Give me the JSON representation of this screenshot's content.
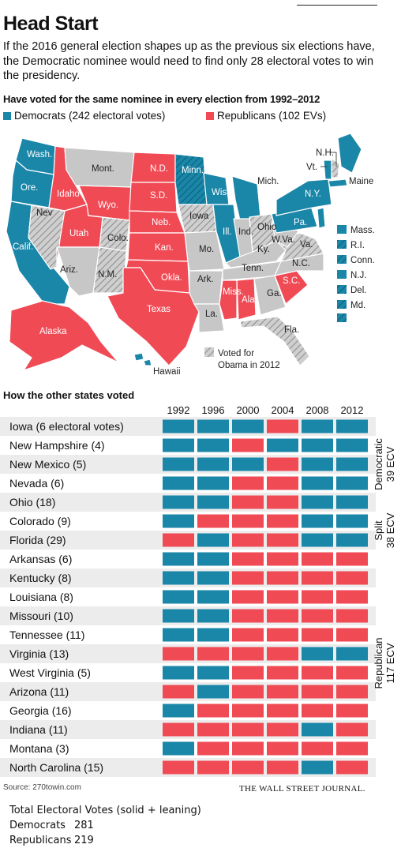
{
  "title": "Head Start",
  "intro": "If the 2016 general election shapes up as the previous six elections have, the Democratic nominee would need to find only 28 electoral votes to win the presidency.",
  "subtitle": "Have voted for the same nominee in every election from 1992–2012",
  "legend": {
    "democrats": "Democrats (242 electoral votes)",
    "republicans": "Republicans (102 EVs)",
    "hatched": "Voted for Obama in 2012"
  },
  "colors": {
    "dem": "#1a86a8",
    "rep": "#f04a55",
    "gray": "#c7c7c7",
    "rowbg": "#ececec"
  },
  "map_labels": {
    "wash": "Wash.",
    "ore": "Ore.",
    "calif": "Calif.",
    "nev": "Nev",
    "idaho": "Idaho",
    "utah": "Utah",
    "ariz": "Ariz.",
    "mont": "Mont.",
    "wyo": "Wyo.",
    "colo": "Colo.",
    "nm": "N.M.",
    "nd": "N.D.",
    "sd": "S.D.",
    "neb": "Neb.",
    "kan": "Kan.",
    "okla": "Okla.",
    "texas": "Texas",
    "minn": "Minn.",
    "iowa": "Iowa",
    "mo": "Mo.",
    "ark": "Ark.",
    "la": "La.",
    "wis": "Wis.",
    "ill": "Ill.",
    "mich": "Mich.",
    "ind": "Ind.",
    "ohio": "Ohio",
    "ky": "Ky.",
    "tenn": "Tenn.",
    "miss": "Miss.",
    "ala": "Ala.",
    "ga": "Ga.",
    "fla": "Fla.",
    "sc": "S.C.",
    "nc": "N.C.",
    "va": "Va.",
    "wva": "W.Va.",
    "pa": "Pa.",
    "ny": "N.Y.",
    "nh": "N.H.",
    "vt": "Vt.",
    "maine": "Maine",
    "alaska": "Alaska",
    "hawaii": "Hawaii",
    "mass": "Mass.",
    "ri": "R.I.",
    "conn": "Conn.",
    "nj": "N.J.",
    "del": "Del.",
    "md": "Md."
  },
  "other_title": "How the other states voted",
  "chart_data": {
    "type": "heatmap",
    "title": "How the other states voted",
    "years": [
      "1992",
      "1996",
      "2000",
      "2004",
      "2008",
      "2012"
    ],
    "rows": [
      {
        "state": "Iowa (6 electoral votes)",
        "votes": [
          "D",
          "D",
          "D",
          "R",
          "D",
          "D"
        ]
      },
      {
        "state": "New Hampshire (4)",
        "votes": [
          "D",
          "D",
          "R",
          "D",
          "D",
          "D"
        ]
      },
      {
        "state": "New Mexico (5)",
        "votes": [
          "D",
          "D",
          "D",
          "R",
          "D",
          "D"
        ]
      },
      {
        "state": "Nevada (6)",
        "votes": [
          "D",
          "D",
          "R",
          "R",
          "D",
          "D"
        ]
      },
      {
        "state": "Ohio (18)",
        "votes": [
          "D",
          "D",
          "R",
          "R",
          "D",
          "D"
        ]
      },
      {
        "state": "Colorado (9)",
        "votes": [
          "D",
          "R",
          "R",
          "R",
          "D",
          "D"
        ]
      },
      {
        "state": "Florida (29)",
        "votes": [
          "R",
          "D",
          "R",
          "R",
          "D",
          "D"
        ]
      },
      {
        "state": "Arkansas (6)",
        "votes": [
          "D",
          "D",
          "R",
          "R",
          "R",
          "R"
        ]
      },
      {
        "state": "Kentucky (8)",
        "votes": [
          "D",
          "D",
          "R",
          "R",
          "R",
          "R"
        ]
      },
      {
        "state": "Louisiana (8)",
        "votes": [
          "D",
          "D",
          "R",
          "R",
          "R",
          "R"
        ]
      },
      {
        "state": "Missouri (10)",
        "votes": [
          "D",
          "D",
          "R",
          "R",
          "R",
          "R"
        ]
      },
      {
        "state": "Tennessee (11)",
        "votes": [
          "D",
          "D",
          "R",
          "R",
          "R",
          "R"
        ]
      },
      {
        "state": "Virginia (13)",
        "votes": [
          "R",
          "R",
          "R",
          "R",
          "D",
          "D"
        ]
      },
      {
        "state": "West Virginia (5)",
        "votes": [
          "D",
          "D",
          "R",
          "R",
          "R",
          "R"
        ]
      },
      {
        "state": "Arizona (11)",
        "votes": [
          "R",
          "D",
          "R",
          "R",
          "R",
          "R"
        ]
      },
      {
        "state": "Georgia (16)",
        "votes": [
          "D",
          "R",
          "R",
          "R",
          "R",
          "R"
        ]
      },
      {
        "state": "Indiana (11)",
        "votes": [
          "R",
          "R",
          "R",
          "R",
          "D",
          "R"
        ]
      },
      {
        "state": "Montana (3)",
        "votes": [
          "D",
          "R",
          "R",
          "R",
          "R",
          "R"
        ]
      },
      {
        "state": "North Carolina (15)",
        "votes": [
          "R",
          "R",
          "R",
          "R",
          "D",
          "R"
        ]
      }
    ],
    "groups": [
      {
        "label": "Democratic",
        "ecv": "39 ECV",
        "rows": [
          0,
          4
        ]
      },
      {
        "label": "Split",
        "ecv": "38 ECV",
        "rows": [
          5,
          6
        ]
      },
      {
        "label": "Republican",
        "ecv": "117 ECV",
        "rows": [
          7,
          18
        ]
      }
    ]
  },
  "source": "Source: 270towin.com",
  "publisher": "THE WALL STREET JOURNAL.",
  "totals": {
    "title": "Total Electoral Votes (solid + leaning)",
    "dem_label": "Democrats",
    "dem_value": "281",
    "rep_label": "Republicans",
    "rep_value": "219"
  }
}
